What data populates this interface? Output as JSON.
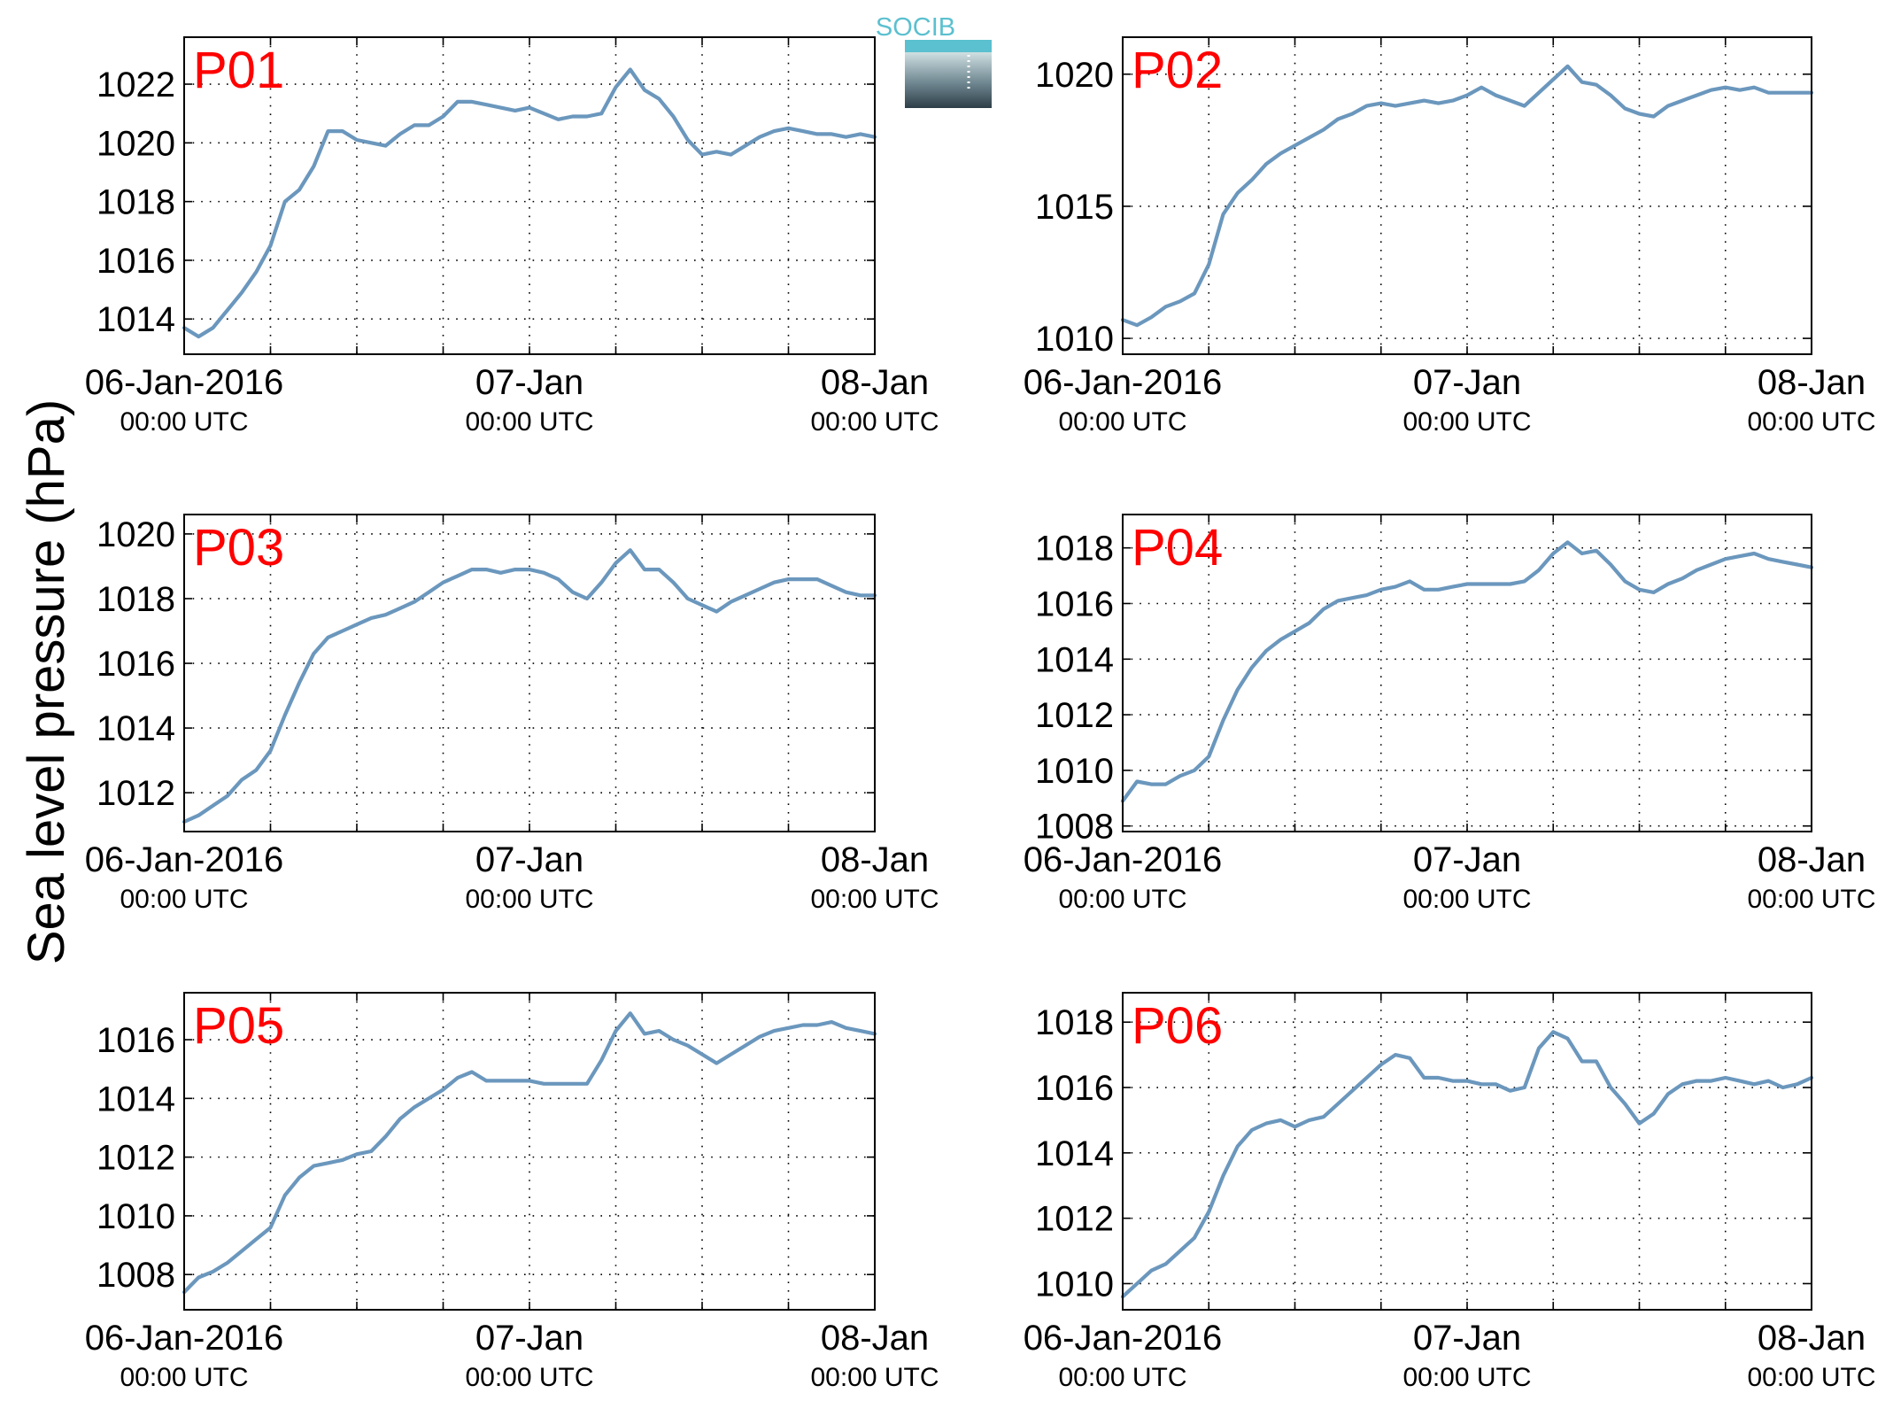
{
  "figure": {
    "ylabel": "Sea level pressure (hPa)",
    "logo_text": "SOCIB"
  },
  "colors": {
    "series_line": "#6b97bd",
    "panel_label": "#ff0000",
    "logo_accent": "#5bc0cf"
  },
  "chart_data": [
    {
      "type": "line",
      "title": "P01",
      "x_tick_labels": [
        {
          "date": "06-Jan-2016",
          "time": "00:00 UTC"
        },
        {
          "date": "07-Jan",
          "time": "00:00 UTC"
        },
        {
          "date": "08-Jan",
          "time": "00:00 UTC"
        }
      ],
      "xlim_hours": [
        0,
        48
      ],
      "ylim": [
        1012.8,
        1023.6
      ],
      "yticks": [
        1014,
        1016,
        1018,
        1020,
        1022
      ],
      "grid": true,
      "series": [
        {
          "x_hours": [
            0,
            1,
            2,
            3,
            4,
            5,
            6,
            7,
            8,
            9,
            10,
            11,
            12,
            13,
            14,
            15,
            16,
            17,
            18,
            19,
            20,
            21,
            22,
            23,
            24,
            25,
            26,
            27,
            28,
            29,
            30,
            31,
            32,
            33,
            34,
            35,
            36,
            37,
            38,
            39,
            40,
            41,
            42,
            43,
            44,
            45,
            46,
            47,
            48
          ],
          "values": [
            1013.7,
            1013.4,
            1013.7,
            1014.3,
            1014.9,
            1015.6,
            1016.5,
            1018.0,
            1018.4,
            1019.2,
            1020.4,
            1020.4,
            1020.1,
            1020.0,
            1019.9,
            1020.3,
            1020.6,
            1020.6,
            1020.9,
            1021.4,
            1021.4,
            1021.3,
            1021.2,
            1021.1,
            1021.2,
            1021.0,
            1020.8,
            1020.9,
            1020.9,
            1021.0,
            1021.9,
            1022.5,
            1021.8,
            1021.5,
            1020.9,
            1020.1,
            1019.6,
            1019.7,
            1019.6,
            1019.9,
            1020.2,
            1020.4,
            1020.5,
            1020.4,
            1020.3,
            1020.3,
            1020.2,
            1020.3,
            1020.2
          ]
        }
      ]
    },
    {
      "type": "line",
      "title": "P02",
      "x_tick_labels": [
        {
          "date": "06-Jan-2016",
          "time": "00:00 UTC"
        },
        {
          "date": "07-Jan",
          "time": "00:00 UTC"
        },
        {
          "date": "08-Jan",
          "time": "00:00 UTC"
        }
      ],
      "xlim_hours": [
        0,
        48
      ],
      "ylim": [
        1009.4,
        1021.4
      ],
      "yticks": [
        1010,
        1015,
        1020
      ],
      "grid": true,
      "series": [
        {
          "x_hours": [
            0,
            1,
            2,
            3,
            4,
            5,
            6,
            7,
            8,
            9,
            10,
            11,
            12,
            13,
            14,
            15,
            16,
            17,
            18,
            19,
            20,
            21,
            22,
            23,
            24,
            25,
            26,
            27,
            28,
            29,
            30,
            31,
            32,
            33,
            34,
            35,
            36,
            37,
            38,
            39,
            40,
            41,
            42,
            43,
            44,
            45,
            46,
            47,
            48
          ],
          "values": [
            1010.7,
            1010.5,
            1010.8,
            1011.2,
            1011.4,
            1011.7,
            1012.8,
            1014.7,
            1015.5,
            1016.0,
            1016.6,
            1017.0,
            1017.3,
            1017.6,
            1017.9,
            1018.3,
            1018.5,
            1018.8,
            1018.9,
            1018.8,
            1018.9,
            1019.0,
            1018.9,
            1019.0,
            1019.2,
            1019.5,
            1019.2,
            1019.0,
            1018.8,
            1019.3,
            1019.8,
            1020.3,
            1019.7,
            1019.6,
            1019.2,
            1018.7,
            1018.5,
            1018.4,
            1018.8,
            1019.0,
            1019.2,
            1019.4,
            1019.5,
            1019.4,
            1019.5,
            1019.3,
            1019.3,
            1019.3,
            1019.3
          ]
        }
      ]
    },
    {
      "type": "line",
      "title": "P03",
      "x_tick_labels": [
        {
          "date": "06-Jan-2016",
          "time": "00:00 UTC"
        },
        {
          "date": "07-Jan",
          "time": "00:00 UTC"
        },
        {
          "date": "08-Jan",
          "time": "00:00 UTC"
        }
      ],
      "xlim_hours": [
        0,
        48
      ],
      "ylim": [
        1010.8,
        1020.6
      ],
      "yticks": [
        1012,
        1014,
        1016,
        1018,
        1020
      ],
      "grid": true,
      "series": [
        {
          "x_hours": [
            0,
            1,
            2,
            3,
            4,
            5,
            6,
            7,
            8,
            9,
            10,
            11,
            12,
            13,
            14,
            15,
            16,
            17,
            18,
            19,
            20,
            21,
            22,
            23,
            24,
            25,
            26,
            27,
            28,
            29,
            30,
            31,
            32,
            33,
            34,
            35,
            36,
            37,
            38,
            39,
            40,
            41,
            42,
            43,
            44,
            45,
            46,
            47,
            48
          ],
          "values": [
            1011.1,
            1011.3,
            1011.6,
            1011.9,
            1012.4,
            1012.7,
            1013.3,
            1014.4,
            1015.4,
            1016.3,
            1016.8,
            1017.0,
            1017.2,
            1017.4,
            1017.5,
            1017.7,
            1017.9,
            1018.2,
            1018.5,
            1018.7,
            1018.9,
            1018.9,
            1018.8,
            1018.9,
            1018.9,
            1018.8,
            1018.6,
            1018.2,
            1018.0,
            1018.5,
            1019.1,
            1019.5,
            1018.9,
            1018.9,
            1018.5,
            1018.0,
            1017.8,
            1017.6,
            1017.9,
            1018.1,
            1018.3,
            1018.5,
            1018.6,
            1018.6,
            1018.6,
            1018.4,
            1018.2,
            1018.1,
            1018.1
          ]
        }
      ]
    },
    {
      "type": "line",
      "title": "P04",
      "x_tick_labels": [
        {
          "date": "06-Jan-2016",
          "time": "00:00 UTC"
        },
        {
          "date": "07-Jan",
          "time": "00:00 UTC"
        },
        {
          "date": "08-Jan",
          "time": "00:00 UTC"
        }
      ],
      "xlim_hours": [
        0,
        48
      ],
      "ylim": [
        1007.8,
        1019.2
      ],
      "yticks": [
        1008,
        1010,
        1012,
        1014,
        1016,
        1018
      ],
      "grid": true,
      "series": [
        {
          "x_hours": [
            0,
            1,
            2,
            3,
            4,
            5,
            6,
            7,
            8,
            9,
            10,
            11,
            12,
            13,
            14,
            15,
            16,
            17,
            18,
            19,
            20,
            21,
            22,
            23,
            24,
            25,
            26,
            27,
            28,
            29,
            30,
            31,
            32,
            33,
            34,
            35,
            36,
            37,
            38,
            39,
            40,
            41,
            42,
            43,
            44,
            45,
            46,
            47,
            48
          ],
          "values": [
            1008.9,
            1009.6,
            1009.5,
            1009.5,
            1009.8,
            1010.0,
            1010.5,
            1011.8,
            1012.9,
            1013.7,
            1014.3,
            1014.7,
            1015.0,
            1015.3,
            1015.8,
            1016.1,
            1016.2,
            1016.3,
            1016.5,
            1016.6,
            1016.8,
            1016.5,
            1016.5,
            1016.6,
            1016.7,
            1016.7,
            1016.7,
            1016.7,
            1016.8,
            1017.2,
            1017.8,
            1018.2,
            1017.8,
            1017.9,
            1017.4,
            1016.8,
            1016.5,
            1016.4,
            1016.7,
            1016.9,
            1017.2,
            1017.4,
            1017.6,
            1017.7,
            1017.8,
            1017.6,
            1017.5,
            1017.4,
            1017.3
          ]
        }
      ]
    },
    {
      "type": "line",
      "title": "P05",
      "x_tick_labels": [
        {
          "date": "06-Jan-2016",
          "time": "00:00 UTC"
        },
        {
          "date": "07-Jan",
          "time": "00:00 UTC"
        },
        {
          "date": "08-Jan",
          "time": "00:00 UTC"
        }
      ],
      "xlim_hours": [
        0,
        48
      ],
      "ylim": [
        1006.8,
        1017.6
      ],
      "yticks": [
        1008,
        1010,
        1012,
        1014,
        1016
      ],
      "grid": true,
      "series": [
        {
          "x_hours": [
            0,
            1,
            2,
            3,
            4,
            5,
            6,
            7,
            8,
            9,
            10,
            11,
            12,
            13,
            14,
            15,
            16,
            17,
            18,
            19,
            20,
            21,
            22,
            23,
            24,
            25,
            26,
            27,
            28,
            29,
            30,
            31,
            32,
            33,
            34,
            35,
            36,
            37,
            38,
            39,
            40,
            41,
            42,
            43,
            44,
            45,
            46,
            47,
            48
          ],
          "values": [
            1007.4,
            1007.9,
            1008.1,
            1008.4,
            1008.8,
            1009.2,
            1009.6,
            1010.7,
            1011.3,
            1011.7,
            1011.8,
            1011.9,
            1012.1,
            1012.2,
            1012.7,
            1013.3,
            1013.7,
            1014.0,
            1014.3,
            1014.7,
            1014.9,
            1014.6,
            1014.6,
            1014.6,
            1014.6,
            1014.5,
            1014.5,
            1014.5,
            1014.5,
            1015.3,
            1016.3,
            1016.9,
            1016.2,
            1016.3,
            1016.0,
            1015.8,
            1015.5,
            1015.2,
            1015.5,
            1015.8,
            1016.1,
            1016.3,
            1016.4,
            1016.5,
            1016.5,
            1016.6,
            1016.4,
            1016.3,
            1016.2
          ]
        }
      ]
    },
    {
      "type": "line",
      "title": "P06",
      "x_tick_labels": [
        {
          "date": "06-Jan-2016",
          "time": "00:00 UTC"
        },
        {
          "date": "07-Jan",
          "time": "00:00 UTC"
        },
        {
          "date": "08-Jan",
          "time": "00:00 UTC"
        }
      ],
      "xlim_hours": [
        0,
        48
      ],
      "ylim": [
        1009.2,
        1018.9
      ],
      "yticks": [
        1010,
        1012,
        1014,
        1016,
        1018
      ],
      "grid": true,
      "series": [
        {
          "x_hours": [
            0,
            1,
            2,
            3,
            4,
            5,
            6,
            7,
            8,
            9,
            10,
            11,
            12,
            13,
            14,
            15,
            16,
            17,
            18,
            19,
            20,
            21,
            22,
            23,
            24,
            25,
            26,
            27,
            28,
            29,
            30,
            31,
            32,
            33,
            34,
            35,
            36,
            37,
            38,
            39,
            40,
            41,
            42,
            43,
            44,
            45,
            46,
            47,
            48
          ],
          "values": [
            1009.6,
            1010.0,
            1010.4,
            1010.6,
            1011.0,
            1011.4,
            1012.2,
            1013.3,
            1014.2,
            1014.7,
            1014.9,
            1015.0,
            1014.8,
            1015.0,
            1015.1,
            1015.5,
            1015.9,
            1016.3,
            1016.7,
            1017.0,
            1016.9,
            1016.3,
            1016.3,
            1016.2,
            1016.2,
            1016.1,
            1016.1,
            1015.9,
            1016.0,
            1017.2,
            1017.7,
            1017.5,
            1016.8,
            1016.8,
            1016.0,
            1015.5,
            1014.9,
            1015.2,
            1015.8,
            1016.1,
            1016.2,
            1016.2,
            1016.3,
            1016.2,
            1016.1,
            1016.2,
            1016.0,
            1016.1,
            1016.3
          ]
        }
      ]
    }
  ]
}
